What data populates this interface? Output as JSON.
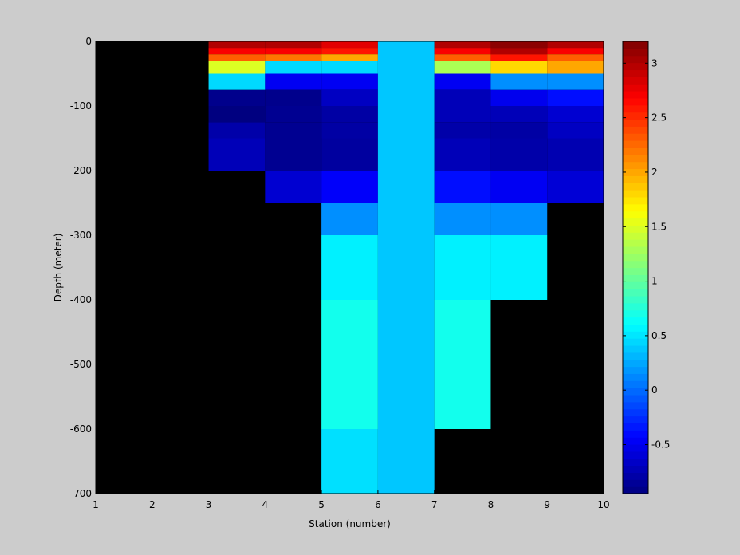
{
  "chart_data": {
    "type": "heatmap",
    "title": "",
    "xlabel": "Station (number)",
    "ylabel": "Depth (meter)",
    "xlim": [
      1,
      10
    ],
    "ylim": [
      -700,
      0
    ],
    "xticks": [
      1,
      2,
      3,
      4,
      5,
      6,
      7,
      8,
      9,
      10
    ],
    "yticks": [
      0,
      -100,
      -200,
      -300,
      -400,
      -500,
      -600,
      -700
    ],
    "colorbar": {
      "colormap": "jet",
      "clim": [
        -0.95,
        3.2
      ],
      "ticks": [
        -0.5,
        0,
        0.5,
        1,
        1.5,
        2,
        2.5,
        3
      ]
    },
    "background_color": "#000000",
    "cells": [
      {
        "x0": 3,
        "x1": 4,
        "y0": 0,
        "y1": -10,
        "value": 3.0
      },
      {
        "x0": 3,
        "x1": 4,
        "y0": -10,
        "y1": -20,
        "value": 2.7
      },
      {
        "x0": 3,
        "x1": 4,
        "y0": -20,
        "y1": -30,
        "value": 2.3
      },
      {
        "x0": 3,
        "x1": 4,
        "y0": -30,
        "y1": -50,
        "value": 1.5
      },
      {
        "x0": 3,
        "x1": 4,
        "y0": -50,
        "y1": -75,
        "value": 0.45
      },
      {
        "x0": 3,
        "x1": 4,
        "y0": -75,
        "y1": -100,
        "value": -0.9
      },
      {
        "x0": 3,
        "x1": 4,
        "y0": -100,
        "y1": -125,
        "value": -0.95
      },
      {
        "x0": 3,
        "x1": 4,
        "y0": -125,
        "y1": -150,
        "value": -0.78
      },
      {
        "x0": 3,
        "x1": 4,
        "y0": -150,
        "y1": -200,
        "value": -0.72
      },
      {
        "x0": 4,
        "x1": 5,
        "y0": 0,
        "y1": -10,
        "value": 3.0
      },
      {
        "x0": 4,
        "x1": 5,
        "y0": -10,
        "y1": -20,
        "value": 2.7
      },
      {
        "x0": 4,
        "x1": 5,
        "y0": -20,
        "y1": -30,
        "value": 2.2
      },
      {
        "x0": 4,
        "x1": 5,
        "y0": -30,
        "y1": -50,
        "value": 0.45
      },
      {
        "x0": 4,
        "x1": 5,
        "y0": -50,
        "y1": -75,
        "value": -0.48
      },
      {
        "x0": 4,
        "x1": 5,
        "y0": -75,
        "y1": -100,
        "value": -0.9
      },
      {
        "x0": 4,
        "x1": 5,
        "y0": -100,
        "y1": -125,
        "value": -0.88
      },
      {
        "x0": 4,
        "x1": 5,
        "y0": -125,
        "y1": -150,
        "value": -0.88
      },
      {
        "x0": 4,
        "x1": 5,
        "y0": -150,
        "y1": -200,
        "value": -0.88
      },
      {
        "x0": 4,
        "x1": 5,
        "y0": -200,
        "y1": -250,
        "value": -0.62
      },
      {
        "x0": 5,
        "x1": 6,
        "y0": 0,
        "y1": -10,
        "value": 2.8
      },
      {
        "x0": 5,
        "x1": 6,
        "y0": -10,
        "y1": -20,
        "value": 2.6
      },
      {
        "x0": 5,
        "x1": 6,
        "y0": -20,
        "y1": -30,
        "value": 2.0
      },
      {
        "x0": 5,
        "x1": 6,
        "y0": -30,
        "y1": -50,
        "value": 0.45
      },
      {
        "x0": 5,
        "x1": 6,
        "y0": -50,
        "y1": -75,
        "value": -0.48
      },
      {
        "x0": 5,
        "x1": 6,
        "y0": -75,
        "y1": -100,
        "value": -0.68
      },
      {
        "x0": 5,
        "x1": 6,
        "y0": -100,
        "y1": -125,
        "value": -0.8
      },
      {
        "x0": 5,
        "x1": 6,
        "y0": -125,
        "y1": -150,
        "value": -0.8
      },
      {
        "x0": 5,
        "x1": 6,
        "y0": -150,
        "y1": -200,
        "value": -0.82
      },
      {
        "x0": 5,
        "x1": 6,
        "y0": -200,
        "y1": -250,
        "value": -0.45
      },
      {
        "x0": 5,
        "x1": 6,
        "y0": -250,
        "y1": -300,
        "value": 0.15
      },
      {
        "x0": 5,
        "x1": 6,
        "y0": -300,
        "y1": -400,
        "value": 0.55
      },
      {
        "x0": 5,
        "x1": 6,
        "y0": -400,
        "y1": -600,
        "value": 0.68
      },
      {
        "x0": 5,
        "x1": 6,
        "y0": -600,
        "y1": -700,
        "value": 0.48
      },
      {
        "x0": 6,
        "x1": 7,
        "y0": 0,
        "y1": -700,
        "value": 0.38
      },
      {
        "x0": 7,
        "x1": 8,
        "y0": 0,
        "y1": -10,
        "value": 3.0
      },
      {
        "x0": 7,
        "x1": 8,
        "y0": -10,
        "y1": -20,
        "value": 2.7
      },
      {
        "x0": 7,
        "x1": 8,
        "y0": -20,
        "y1": -30,
        "value": 2.3
      },
      {
        "x0": 7,
        "x1": 8,
        "y0": -30,
        "y1": -50,
        "value": 1.3
      },
      {
        "x0": 7,
        "x1": 8,
        "y0": -50,
        "y1": -75,
        "value": -0.48
      },
      {
        "x0": 7,
        "x1": 8,
        "y0": -75,
        "y1": -100,
        "value": -0.72
      },
      {
        "x0": 7,
        "x1": 8,
        "y0": -100,
        "y1": -125,
        "value": -0.72
      },
      {
        "x0": 7,
        "x1": 8,
        "y0": -125,
        "y1": -150,
        "value": -0.78
      },
      {
        "x0": 7,
        "x1": 8,
        "y0": -150,
        "y1": -200,
        "value": -0.72
      },
      {
        "x0": 7,
        "x1": 8,
        "y0": -200,
        "y1": -250,
        "value": -0.38
      },
      {
        "x0": 7,
        "x1": 8,
        "y0": -250,
        "y1": -300,
        "value": 0.15
      },
      {
        "x0": 7,
        "x1": 8,
        "y0": -300,
        "y1": -400,
        "value": 0.55
      },
      {
        "x0": 7,
        "x1": 8,
        "y0": -400,
        "y1": -600,
        "value": 0.68
      },
      {
        "x0": 8,
        "x1": 9,
        "y0": 0,
        "y1": -10,
        "value": 3.15
      },
      {
        "x0": 8,
        "x1": 9,
        "y0": -10,
        "y1": -20,
        "value": 3.0
      },
      {
        "x0": 8,
        "x1": 9,
        "y0": -20,
        "y1": -30,
        "value": 2.6
      },
      {
        "x0": 8,
        "x1": 9,
        "y0": -30,
        "y1": -50,
        "value": 1.8
      },
      {
        "x0": 8,
        "x1": 9,
        "y0": -50,
        "y1": -75,
        "value": 0.15
      },
      {
        "x0": 8,
        "x1": 9,
        "y0": -75,
        "y1": -100,
        "value": -0.5
      },
      {
        "x0": 8,
        "x1": 9,
        "y0": -100,
        "y1": -125,
        "value": -0.72
      },
      {
        "x0": 8,
        "x1": 9,
        "y0": -125,
        "y1": -150,
        "value": -0.8
      },
      {
        "x0": 8,
        "x1": 9,
        "y0": -150,
        "y1": -200,
        "value": -0.78
      },
      {
        "x0": 8,
        "x1": 9,
        "y0": -200,
        "y1": -250,
        "value": -0.48
      },
      {
        "x0": 8,
        "x1": 9,
        "y0": -250,
        "y1": -300,
        "value": 0.15
      },
      {
        "x0": 8,
        "x1": 9,
        "y0": -300,
        "y1": -400,
        "value": 0.55
      },
      {
        "x0": 9,
        "x1": 10,
        "y0": 0,
        "y1": -10,
        "value": 3.0
      },
      {
        "x0": 9,
        "x1": 10,
        "y0": -10,
        "y1": -20,
        "value": 2.7
      },
      {
        "x0": 9,
        "x1": 10,
        "y0": -20,
        "y1": -30,
        "value": 2.3
      },
      {
        "x0": 9,
        "x1": 10,
        "y0": -30,
        "y1": -50,
        "value": 2.0
      },
      {
        "x0": 9,
        "x1": 10,
        "y0": -50,
        "y1": -75,
        "value": 0.15
      },
      {
        "x0": 9,
        "x1": 10,
        "y0": -75,
        "y1": -100,
        "value": -0.38
      },
      {
        "x0": 9,
        "x1": 10,
        "y0": -100,
        "y1": -125,
        "value": -0.62
      },
      {
        "x0": 9,
        "x1": 10,
        "y0": -125,
        "y1": -150,
        "value": -0.68
      },
      {
        "x0": 9,
        "x1": 10,
        "y0": -150,
        "y1": -200,
        "value": -0.75
      },
      {
        "x0": 9,
        "x1": 10,
        "y0": -200,
        "y1": -250,
        "value": -0.6
      }
    ]
  }
}
